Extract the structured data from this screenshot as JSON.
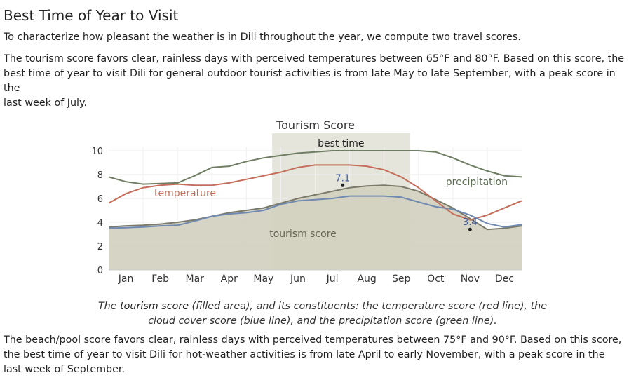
{
  "heading": "Best Time of Year to Visit",
  "intro": "To characterize how pleasant the weather is in Dili throughout the year, we compute two travel scores.",
  "tourism_paragraph": {
    "p1": "The ",
    "k1": "tourism score",
    "p2": " favors clear, rainless days with perceived temperatures between ",
    "k2": "65°F",
    "p3": " and ",
    "k3": "80°F",
    "p4": ". Based on this score, the best time of year to visit Dili for general outdoor tourist activities is from ",
    "k4": "late May",
    "p5": " to ",
    "k5": "late September",
    "p6": ", with a peak score in the ",
    "k6": "last week of July",
    "p7": "."
  },
  "beach_paragraph": {
    "p1": "The ",
    "k1": "beach/pool score",
    "p2": " favors clear, rainless days with perceived temperatures between ",
    "k2": "75°F",
    "p3": " and ",
    "k3": "90°F",
    "p4": ". Based on this score, the best time of year to visit Dili for hot-weather activities is from ",
    "k4": "late April",
    "p5": " to ",
    "k5": "early November",
    "p6": ", with a peak score in the ",
    "k6": "last week of September",
    "p7": "."
  },
  "caption": {
    "c1": "The ",
    "c2": "tourism score",
    "c3": " (filled area), and its constituents: the temperature score (red line), the cloud cover score (blue line), and the precipitation score (green line)."
  },
  "chart_data": {
    "type": "area",
    "title": "Tourism Score",
    "ylim": [
      0,
      10
    ],
    "yticks": [
      "0",
      "2",
      "4",
      "6",
      "8",
      "10"
    ],
    "categories": [
      "Jan",
      "Feb",
      "Mar",
      "Apr",
      "May",
      "Jun",
      "Jul",
      "Aug",
      "Sep",
      "Oct",
      "Nov",
      "Dec"
    ],
    "x": [
      0,
      0.5,
      1,
      1.5,
      2,
      2.5,
      3,
      3.5,
      4,
      4.5,
      5,
      5.5,
      6,
      6.5,
      7,
      7.5,
      8,
      8.5,
      9,
      9.5,
      10,
      10.5,
      11,
      11.5,
      12
    ],
    "best_time": {
      "label": "best time",
      "start": 4.75,
      "end": 8.75
    },
    "annotations": [
      {
        "label": "7.1",
        "x": 6.8,
        "y": 7.1
      },
      {
        "label": "3.4",
        "x": 10.5,
        "y": 3.4
      }
    ],
    "series": [
      {
        "name": "tourism score",
        "role": "area",
        "color": "#7a7a6a",
        "fill": "#d1d0bf",
        "values": [
          3.6,
          3.7,
          3.75,
          3.85,
          4.0,
          4.2,
          4.5,
          4.8,
          5.0,
          5.2,
          5.6,
          6.0,
          6.3,
          6.6,
          6.9,
          7.05,
          7.1,
          7.0,
          6.6,
          5.9,
          5.2,
          4.3,
          3.4,
          3.5,
          3.7
        ]
      },
      {
        "name": "temperature",
        "role": "line",
        "color": "#c46e5a",
        "values": [
          5.6,
          6.4,
          6.9,
          7.1,
          7.2,
          7.1,
          7.1,
          7.3,
          7.6,
          7.9,
          8.2,
          8.6,
          8.8,
          8.8,
          8.8,
          8.7,
          8.4,
          7.8,
          6.9,
          5.8,
          4.7,
          4.2,
          4.6,
          5.2,
          5.8
        ]
      },
      {
        "name": "cloud cover",
        "role": "line",
        "color": "#7089b0",
        "values": [
          3.5,
          3.55,
          3.6,
          3.7,
          3.75,
          4.1,
          4.5,
          4.7,
          4.8,
          5.0,
          5.5,
          5.8,
          5.9,
          6.0,
          6.2,
          6.2,
          6.2,
          6.1,
          5.7,
          5.3,
          5.1,
          4.6,
          3.9,
          3.6,
          3.8
        ]
      },
      {
        "name": "precipitation",
        "role": "line",
        "color": "#6f7d63",
        "values": [
          7.8,
          7.4,
          7.2,
          7.25,
          7.3,
          7.9,
          8.6,
          8.7,
          9.1,
          9.4,
          9.6,
          9.8,
          9.9,
          10.0,
          10.0,
          10.0,
          10.0,
          10.0,
          10.0,
          9.9,
          9.4,
          8.8,
          8.3,
          7.9,
          7.8
        ]
      }
    ],
    "series_labels": [
      {
        "text": "temperature",
        "color": "#c46e5a"
      },
      {
        "text": "precipitation",
        "color": "#5a6a52"
      },
      {
        "text": "tourism score",
        "color": "#666658"
      }
    ],
    "best_time_color": "#d1d0bf"
  }
}
